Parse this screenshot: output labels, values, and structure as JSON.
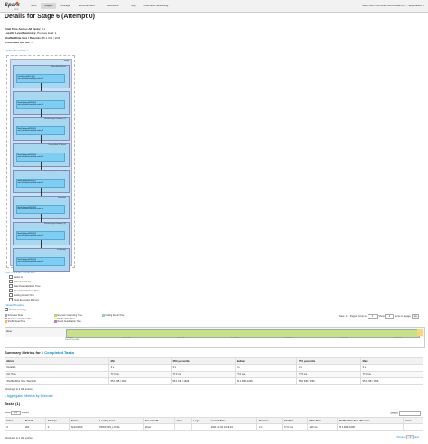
{
  "nav": {
    "brand": "Spark",
    "version": "3.x.x",
    "tabs": [
      "Jobs",
      "Stages",
      "Storage",
      "Environment",
      "Executors",
      "SQL",
      "Structured Streaming"
    ],
    "app_name": "neon-50cf7feb-0b9a-415b-aede-057... application U"
  },
  "title": "Details for Stage 6 (Attempt 0)",
  "summary": {
    "total_time_label": "Total Time Across All Tasks:",
    "total_time_value": "3 s",
    "locality_label": "Locality Level Summary:",
    "locality_value": "Process local: 1",
    "shuffle_label": "Shuffle Write Size / Records:",
    "shuffle_value": "55.1 KiB / 1636",
    "jobid_label": "Associated Job Ids:",
    "jobid_value": "5"
  },
  "dag_toggle": "DAG Visualization",
  "dag": {
    "stage_label": "Stage 6",
    "clusters": [
      {
        "name": "MicroBatchScan",
        "node": "DataSourceRDD [43]\nstart at KafkaDataWrite.scala:42"
      },
      {
        "name": "",
        "node": "MapPartitionsRDD [44]\nstart at KafkaDataWrite.scala:42"
      },
      {
        "name": "WholeStageCodegen (1)",
        "node": "MapPartitionsRDD [45]\nstart at KafkaDataWrite.scala:42"
      },
      {
        "name": "DeserializeToObject",
        "node": "MapPartitionsRDD [46]\nstart at KafkaDataWrite.scala:42"
      },
      {
        "name": "WholeStageCodegen (2)",
        "node": "MapPartitionsRDD [47]\nstart at KafkaDataWrite.scala:42"
      },
      {
        "name": "Generate",
        "node": "MapPartitionsRDD [48]\nstart at KafkaDataWrite.scala:42"
      },
      {
        "name": "WholeStageCodegen (3)",
        "node": "MapPartitionsRDD [49]\nstart at KafkaDataWrite.scala:42"
      },
      {
        "name": "Exchange",
        "node": "MapPartitionsRDD [50]\nstart at KafkaDataWrite.scala:42"
      }
    ]
  },
  "additional_metrics": {
    "toggle": "Show Additional Metrics",
    "items": [
      "Select All",
      "Scheduler Delay",
      "Task Deserialization Time",
      "Result Serialization Time",
      "Getting Result Time",
      "Peak Execution Memory"
    ]
  },
  "event_timeline": {
    "toggle": "Event Timeline",
    "zoom_label": "Enable zooming",
    "legend": [
      {
        "label": "Scheduler Delay",
        "color": "#80b1d3"
      },
      {
        "label": "Task Deserialization Time",
        "color": "#fb8072"
      },
      {
        "label": "Shuffle Read Time",
        "color": "#fdb462"
      },
      {
        "label": "Executor Computing Time",
        "color": "#b3de69"
      },
      {
        "label": "Shuffle Write Time",
        "color": "#ffed6f"
      },
      {
        "label": "Result Serialization Time",
        "color": "#bc80bd"
      },
      {
        "label": "Getting Result Time",
        "color": "#8dd3c7"
      }
    ],
    "pager": "Tasks: 1. 1 Pages. Jump to",
    "page_input": "1",
    "show_label": "Show",
    "show_value": "1",
    "items_label": "items in a page",
    "go": "Go",
    "row_label": "driver",
    "ticks": [
      "13:16:23",
      "13:16:23",
      "13:16:23",
      "13:16:23",
      "13:16:23",
      "13:16:24",
      "13:16:24"
    ],
    "tick_sub": "Tue 04 Oct 2021"
  },
  "summary_metrics": {
    "title": "Summary Metrics for",
    "link": "1 Completed Tasks",
    "headers": [
      "Metric",
      "Min",
      "25th percentile",
      "Median",
      "75th percentile",
      "Max"
    ],
    "rows": [
      [
        "Duration",
        "3 s",
        "3 s",
        "3 s",
        "3 s",
        "3 s"
      ],
      [
        "GC Time",
        "77.0 ms",
        "77.0 ms",
        "77.0 ms",
        "77.0 ms",
        "77.0 ms"
      ],
      [
        "Shuffle Write Size / Records",
        "55.1 KiB / 1636",
        "55.1 KiB / 1636",
        "55.1 KiB / 1636",
        "55.1 KiB / 1636",
        "55.1 KiB / 1636"
      ]
    ],
    "showing": "Showing 1 to 3 of 3 entries"
  },
  "aggregated": {
    "toggle": "Aggregated Metrics by Executor"
  },
  "tasks": {
    "title": "Tasks (1)",
    "show_label": "Show",
    "show_value": "20",
    "entries_label": "entries",
    "search_label": "Search:",
    "headers": [
      "Index",
      "Task ID",
      "Attempt",
      "Status",
      "Locality level",
      "Executor ID",
      "Host",
      "Logs",
      "Launch Time",
      "Duration",
      "GC Time",
      "Write Time",
      "Shuffle Write Size / Records",
      "Errors"
    ],
    "rows": [
      [
        "0",
        "201",
        "0",
        "SUCCESS",
        "PROCESS_LOCAL",
        "driver",
        "",
        "",
        "2021-10-04 13:16:24",
        "3 s",
        "77.0 ms",
        "11.0 ms",
        "55.1 KiB / 1636",
        ""
      ]
    ],
    "showing": "Showing 1 to 1 of 1 entries",
    "prev": "Previous",
    "page": "1",
    "next": "Next"
  }
}
